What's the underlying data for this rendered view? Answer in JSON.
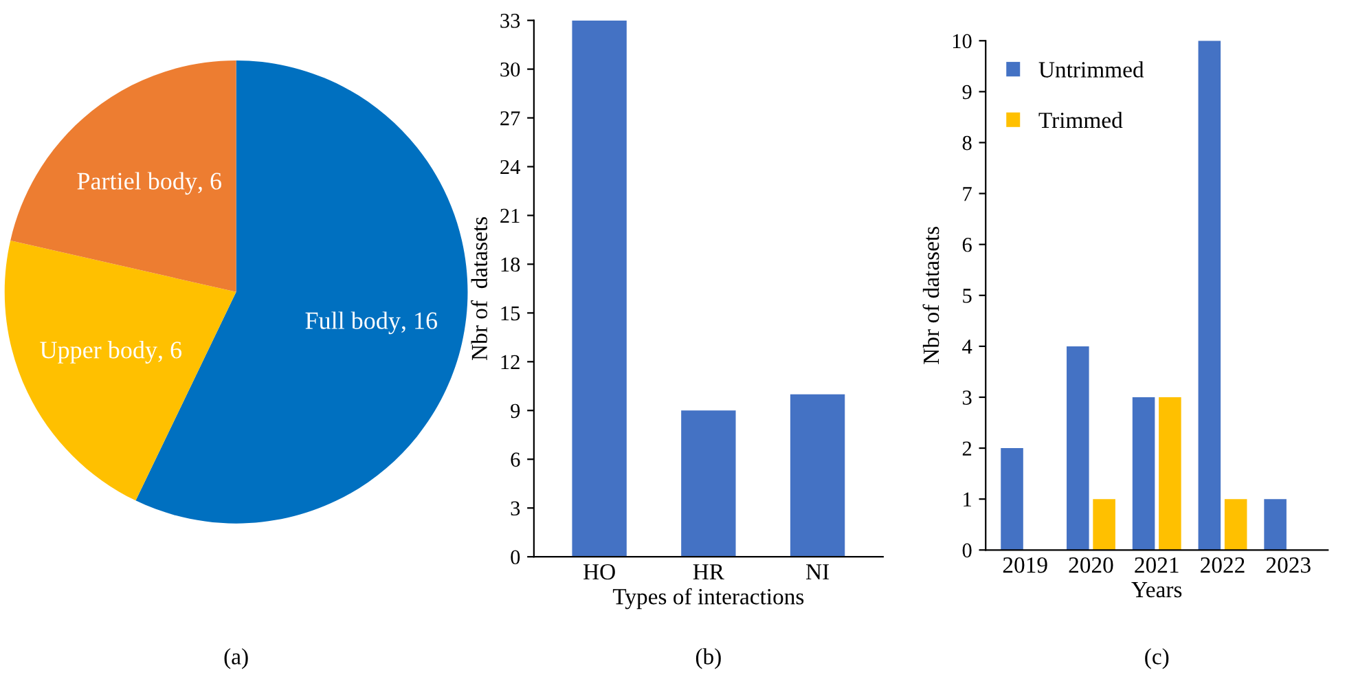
{
  "chart_data": [
    {
      "type": "pie",
      "categories": [
        "Full body",
        "Upper body",
        "Partiel body"
      ],
      "values": [
        16,
        6,
        6
      ],
      "colors": [
        "#0070c0",
        "#ffc000",
        "#ed7d31"
      ],
      "value_labels": [
        ", 16",
        ", 6",
        ", 6"
      ],
      "legend": false,
      "annotations": [
        "(a)"
      ]
    },
    {
      "type": "bar",
      "categories": [
        "HO",
        "HR",
        "NI"
      ],
      "values": [
        33,
        9,
        10
      ],
      "color": "#4472c4",
      "xlabel": "Types of interactions",
      "ylabel": "Nbr of  datasets",
      "ylim": [
        0,
        33
      ],
      "yticks": [
        0,
        3,
        6,
        9,
        12,
        15,
        18,
        21,
        24,
        27,
        30,
        33
      ],
      "grid": false,
      "legend": false,
      "annotations": [
        "(b)"
      ]
    },
    {
      "type": "bar",
      "categories": [
        "2019",
        "2020",
        "2021",
        "2022",
        "2023"
      ],
      "series": [
        {
          "name": "Untrimmed",
          "color": "#4472c4",
          "values": [
            2,
            4,
            3,
            10,
            1
          ]
        },
        {
          "name": "Trimmed",
          "color": "#ffc000",
          "values": [
            null,
            1,
            3,
            1,
            null
          ]
        }
      ],
      "xlabel": "Years",
      "ylabel": "Nbr of datasets",
      "ylim": [
        0,
        10
      ],
      "yticks": [
        0,
        1,
        2,
        3,
        4,
        5,
        6,
        7,
        8,
        9,
        10
      ],
      "grid": false,
      "legend": "top left",
      "annotations": [
        "(c)"
      ]
    }
  ]
}
